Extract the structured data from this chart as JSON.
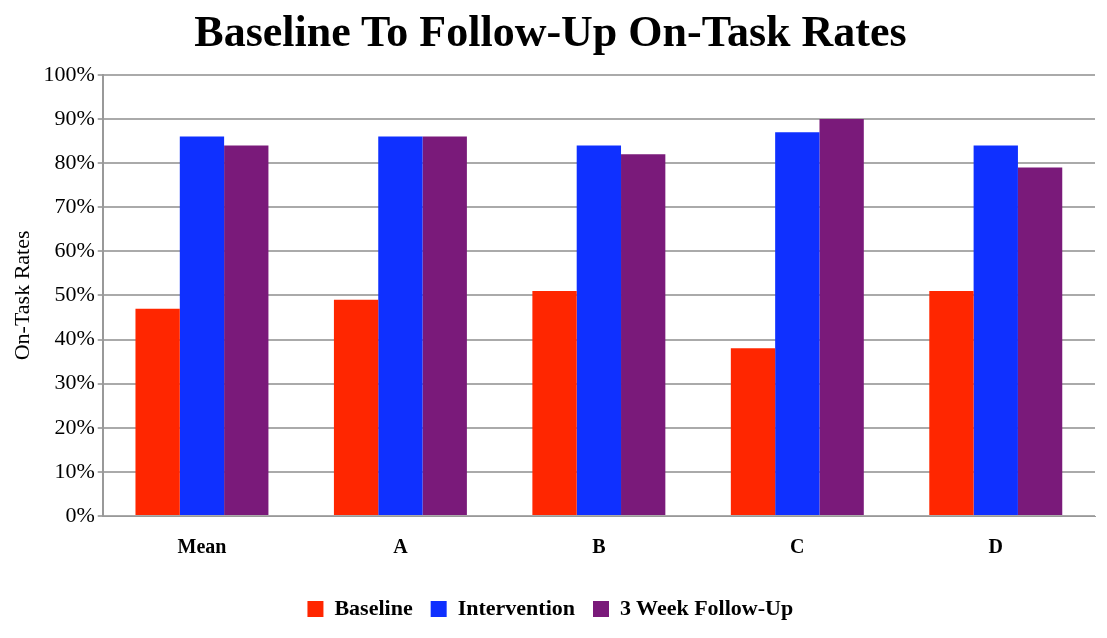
{
  "chart_data": {
    "type": "bar",
    "title": "Baseline To Follow-Up On-Task Rates",
    "ylabel": "On-Task Rates",
    "categories": [
      "Mean",
      "A",
      "B",
      "C",
      "D"
    ],
    "series": [
      {
        "name": "Baseline",
        "color": "#ff2600",
        "values": [
          47,
          49,
          51,
          38,
          51
        ]
      },
      {
        "name": "Intervention",
        "color": "#0f30ff",
        "values": [
          86,
          86,
          84,
          87,
          84
        ]
      },
      {
        "name": "3 Week Follow-Up",
        "color": "#7a1a7a",
        "values": [
          84,
          86,
          82,
          90,
          79
        ]
      }
    ],
    "ylim": [
      0,
      100
    ],
    "yticks": [
      {
        "value": 0,
        "label": "0%"
      },
      {
        "value": 10,
        "label": "10%"
      },
      {
        "value": 20,
        "label": "20%"
      },
      {
        "value": 30,
        "label": "30%"
      },
      {
        "value": 40,
        "label": "40%"
      },
      {
        "value": 50,
        "label": "50%"
      },
      {
        "value": 60,
        "label": "60%"
      },
      {
        "value": 70,
        "label": "70%"
      },
      {
        "value": 80,
        "label": "80%"
      },
      {
        "value": 90,
        "label": "90%"
      },
      {
        "value": 100,
        "label": "100%"
      }
    ],
    "grid": "y",
    "legend": "bottom"
  }
}
